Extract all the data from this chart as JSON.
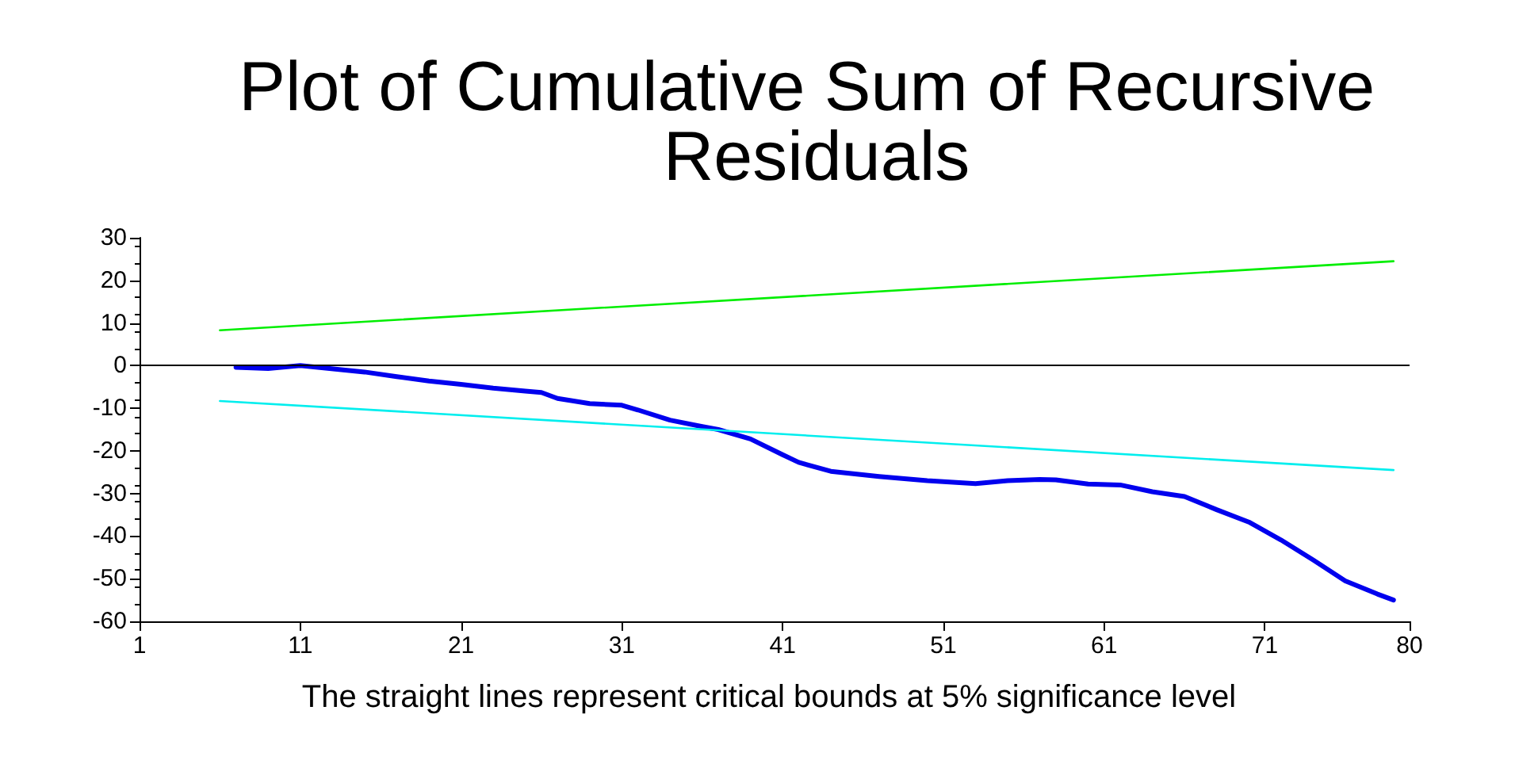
{
  "chart_data": {
    "type": "line",
    "title": "Plot of Cumulative Sum of Recursive Residuals",
    "annotations": [
      "The straight lines represent critical bounds at 5% significance level"
    ],
    "xlim": [
      1,
      80
    ],
    "xticks": [
      1,
      11,
      21,
      31,
      41,
      51,
      61,
      71,
      80
    ],
    "ylim": [
      -60,
      30
    ],
    "yticks": [
      -60,
      -50,
      -40,
      -30,
      -20,
      -10,
      0,
      10,
      20,
      30
    ],
    "grid": false,
    "marker": "none",
    "line_style": "solid",
    "ref_lines": [
      {
        "axis": "y",
        "value": 0,
        "label": null,
        "color": "#000000"
      }
    ],
    "series": [
      {
        "color": "#0000ee",
        "x": [
          7,
          9,
          11,
          15,
          17,
          19,
          21,
          23,
          25,
          26,
          27,
          29,
          31,
          32,
          34,
          36,
          37,
          39,
          41,
          42,
          44,
          47,
          50,
          53,
          55,
          57,
          58,
          60,
          62,
          64,
          66,
          68,
          70,
          72,
          74,
          76,
          78,
          79
        ],
        "values": [
          -0.4,
          -0.7,
          0,
          -1.5,
          -2.6,
          -3.6,
          -4.4,
          -5.3,
          -6,
          -6.3,
          -7.7,
          -8.9,
          -9.3,
          -10.4,
          -12.8,
          -14.3,
          -15,
          -17.2,
          -20.9,
          -22.7,
          -24.8,
          -26,
          -27,
          -27.7,
          -27,
          -26.7,
          -26.8,
          -27.8,
          -28,
          -29.6,
          -30.7,
          -33.8,
          -36.7,
          -40.9,
          -45.6,
          -50.5,
          -53.6,
          -55
        ]
      },
      {
        "color": "#00ee00",
        "x": [
          6,
          79
        ],
        "values": [
          8.3,
          24.5
        ]
      },
      {
        "color": "#00eeee",
        "x": [
          6,
          79
        ],
        "values": [
          -8.3,
          -24.5
        ]
      }
    ]
  }
}
